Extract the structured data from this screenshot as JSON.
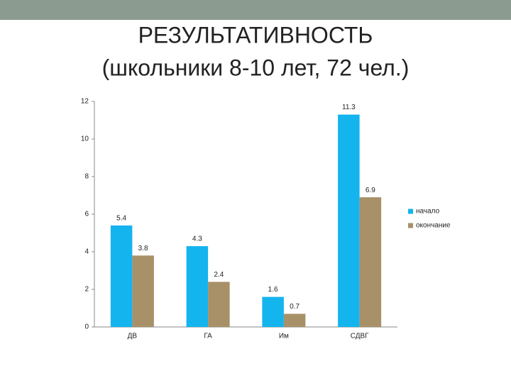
{
  "chart_data": {
    "type": "bar",
    "title": "РЕЗУЛЬТАТИВНОСТЬ",
    "subtitle": "(школьники 8-10 лет, 72 чел.)",
    "categories": [
      "ДВ",
      "ГА",
      "Им",
      "СДВГ"
    ],
    "series": [
      {
        "name": "начало",
        "color": "#14b4ee",
        "values": [
          5.4,
          4.3,
          1.6,
          11.3
        ]
      },
      {
        "name": "окончание",
        "color": "#a89068",
        "values": [
          3.8,
          2.4,
          0.7,
          6.9
        ]
      }
    ],
    "ylim": [
      0,
      12
    ],
    "yticks": [
      0,
      2,
      4,
      6,
      8,
      10,
      12
    ],
    "legend": "right"
  }
}
